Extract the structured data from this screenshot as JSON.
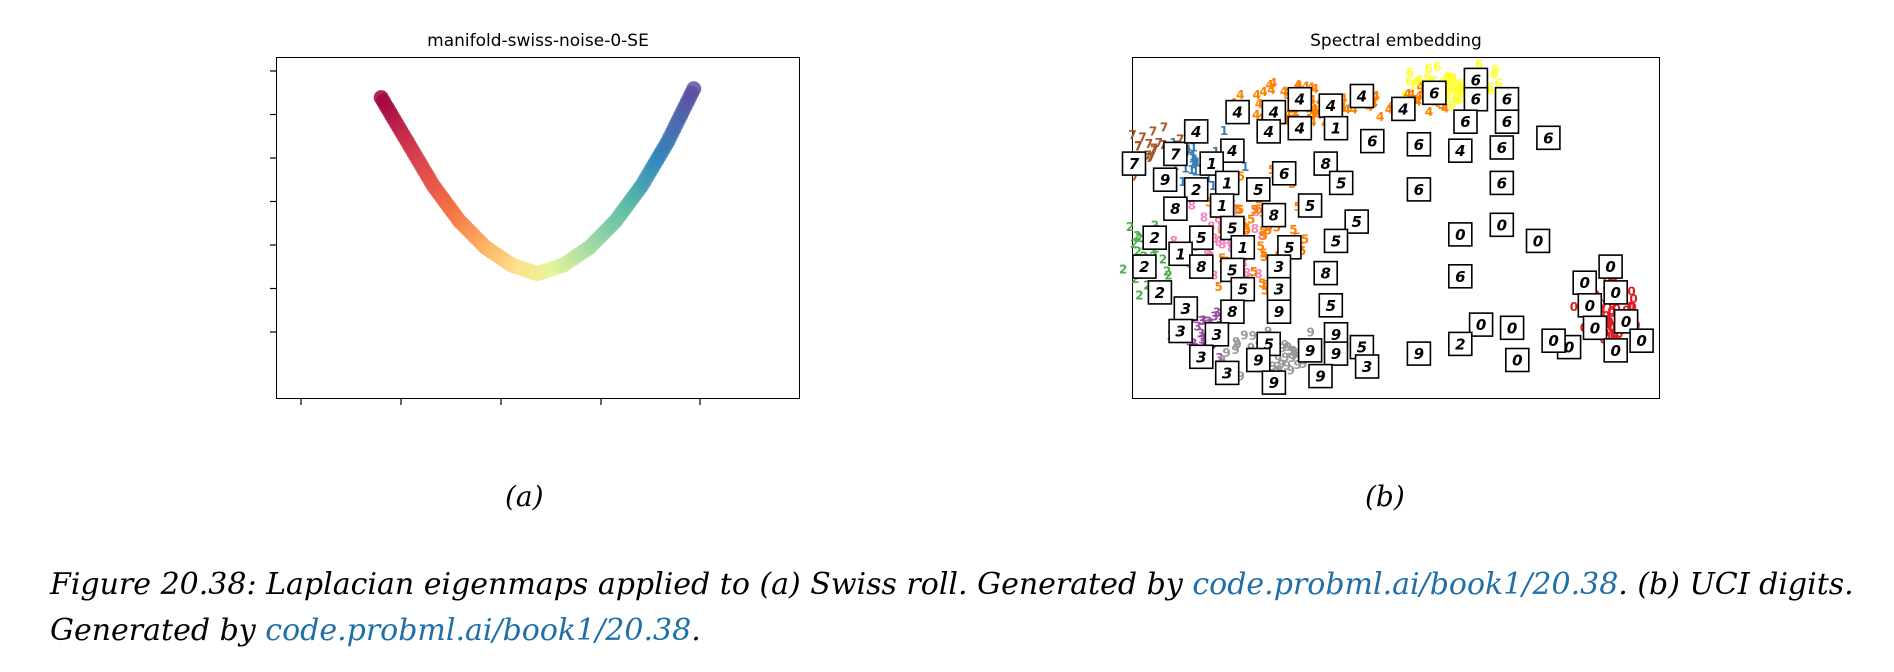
{
  "panel_a": {
    "title": "manifold-swiss-noise-0-SE",
    "sublabel": "(a)"
  },
  "panel_b": {
    "title": "Spectral embedding",
    "sublabel": "(b)"
  },
  "caption": {
    "part1": "Figure 20.38: Laplacian eigenmaps applied to (a) Swiss roll. Generated by ",
    "link1": "code.probml.ai/book1/20.38",
    "part2": ". (b) UCI digits. Generated by ",
    "link2": "code.probml.ai/book1/20.38",
    "part3": "."
  },
  "chart_data": [
    {
      "type": "scatter",
      "title": "manifold-swiss-noise-0-SE",
      "xlabel": "",
      "ylabel": "",
      "grid": false,
      "colormap": [
        "#9e0142",
        "#d53e4f",
        "#f46d43",
        "#fdae61",
        "#fee08b",
        "#e6f598",
        "#abdda4",
        "#66c2a5",
        "#3288bd",
        "#5e4fa2"
      ],
      "series": [
        {
          "x": [
            -0.012,
            -0.01,
            -0.008,
            -0.006,
            -0.004,
            -0.002,
            0.0,
            0.002,
            0.004,
            0.006,
            0.008,
            0.01,
            0.012
          ],
          "y": [
            0.014,
            0.009,
            0.004,
            0.0,
            -0.003,
            -0.005,
            -0.006,
            -0.005,
            -0.003,
            0.0,
            0.004,
            0.009,
            0.015
          ]
        }
      ]
    },
    {
      "type": "scatter",
      "title": "Spectral embedding",
      "xlabel": "",
      "ylabel": "",
      "grid": false,
      "legend": "none",
      "digit_colors": {
        "0": "#e41a1c",
        "1": "#377eb8",
        "2": "#4daf4a",
        "3": "#984ea3",
        "4": "#ff7f00",
        "5": "#ff7f00",
        "6": "#ffff33",
        "7": "#a65628",
        "8": "#f781bf",
        "9": "#999999"
      },
      "thumbnails": [
        {
          "label": "7",
          "x": 0.0,
          "y": 0.7
        },
        {
          "label": "7",
          "x": 0.08,
          "y": 0.73
        },
        {
          "label": "4",
          "x": 0.12,
          "y": 0.8
        },
        {
          "label": "4",
          "x": 0.2,
          "y": 0.86
        },
        {
          "label": "4",
          "x": 0.27,
          "y": 0.86
        },
        {
          "label": "4",
          "x": 0.32,
          "y": 0.9
        },
        {
          "label": "4",
          "x": 0.38,
          "y": 0.88
        },
        {
          "label": "4",
          "x": 0.44,
          "y": 0.91
        },
        {
          "label": "4",
          "x": 0.52,
          "y": 0.87
        },
        {
          "label": "6",
          "x": 0.58,
          "y": 0.92
        },
        {
          "label": "6",
          "x": 0.66,
          "y": 0.96
        },
        {
          "label": "6",
          "x": 0.66,
          "y": 0.9
        },
        {
          "label": "6",
          "x": 0.72,
          "y": 0.9
        },
        {
          "label": "6",
          "x": 0.64,
          "y": 0.83
        },
        {
          "label": "6",
          "x": 0.72,
          "y": 0.83
        },
        {
          "label": "6",
          "x": 0.8,
          "y": 0.78
        },
        {
          "label": "4",
          "x": 0.26,
          "y": 0.8
        },
        {
          "label": "4",
          "x": 0.32,
          "y": 0.81
        },
        {
          "label": "1",
          "x": 0.39,
          "y": 0.81
        },
        {
          "label": "4",
          "x": 0.19,
          "y": 0.74
        },
        {
          "label": "1",
          "x": 0.15,
          "y": 0.7
        },
        {
          "label": "6",
          "x": 0.46,
          "y": 0.77
        },
        {
          "label": "6",
          "x": 0.55,
          "y": 0.76
        },
        {
          "label": "4",
          "x": 0.63,
          "y": 0.74
        },
        {
          "label": "6",
          "x": 0.71,
          "y": 0.75
        },
        {
          "label": "8",
          "x": 0.37,
          "y": 0.7
        },
        {
          "label": "6",
          "x": 0.29,
          "y": 0.67
        },
        {
          "label": "5",
          "x": 0.4,
          "y": 0.64
        },
        {
          "label": "6",
          "x": 0.55,
          "y": 0.62
        },
        {
          "label": "6",
          "x": 0.71,
          "y": 0.64
        },
        {
          "label": "9",
          "x": 0.06,
          "y": 0.65
        },
        {
          "label": "2",
          "x": 0.12,
          "y": 0.62
        },
        {
          "label": "1",
          "x": 0.18,
          "y": 0.64
        },
        {
          "label": "5",
          "x": 0.24,
          "y": 0.62
        },
        {
          "label": "5",
          "x": 0.34,
          "y": 0.57
        },
        {
          "label": "5",
          "x": 0.43,
          "y": 0.52
        },
        {
          "label": "8",
          "x": 0.08,
          "y": 0.56
        },
        {
          "label": "1",
          "x": 0.17,
          "y": 0.57
        },
        {
          "label": "8",
          "x": 0.27,
          "y": 0.54
        },
        {
          "label": "5",
          "x": 0.19,
          "y": 0.5
        },
        {
          "label": "5",
          "x": 0.39,
          "y": 0.46
        },
        {
          "label": "0",
          "x": 0.63,
          "y": 0.48
        },
        {
          "label": "0",
          "x": 0.71,
          "y": 0.51
        },
        {
          "label": "0",
          "x": 0.78,
          "y": 0.46
        },
        {
          "label": "2",
          "x": 0.04,
          "y": 0.47
        },
        {
          "label": "5",
          "x": 0.13,
          "y": 0.47
        },
        {
          "label": "1",
          "x": 0.21,
          "y": 0.44
        },
        {
          "label": "5",
          "x": 0.3,
          "y": 0.44
        },
        {
          "label": "1",
          "x": 0.09,
          "y": 0.42
        },
        {
          "label": "2",
          "x": 0.02,
          "y": 0.38
        },
        {
          "label": "8",
          "x": 0.13,
          "y": 0.38
        },
        {
          "label": "5",
          "x": 0.19,
          "y": 0.37
        },
        {
          "label": "3",
          "x": 0.28,
          "y": 0.38
        },
        {
          "label": "8",
          "x": 0.37,
          "y": 0.36
        },
        {
          "label": "6",
          "x": 0.63,
          "y": 0.35
        },
        {
          "label": "0",
          "x": 0.92,
          "y": 0.38
        },
        {
          "label": "0",
          "x": 0.87,
          "y": 0.33
        },
        {
          "label": "2",
          "x": 0.05,
          "y": 0.3
        },
        {
          "label": "5",
          "x": 0.21,
          "y": 0.31
        },
        {
          "label": "3",
          "x": 0.28,
          "y": 0.31
        },
        {
          "label": "0",
          "x": 0.93,
          "y": 0.3
        },
        {
          "label": "0",
          "x": 0.88,
          "y": 0.26
        },
        {
          "label": "3",
          "x": 0.1,
          "y": 0.25
        },
        {
          "label": "8",
          "x": 0.19,
          "y": 0.24
        },
        {
          "label": "9",
          "x": 0.28,
          "y": 0.24
        },
        {
          "label": "5",
          "x": 0.38,
          "y": 0.26
        },
        {
          "label": "0",
          "x": 0.89,
          "y": 0.19
        },
        {
          "label": "0",
          "x": 0.95,
          "y": 0.21
        },
        {
          "label": "3",
          "x": 0.09,
          "y": 0.18
        },
        {
          "label": "3",
          "x": 0.16,
          "y": 0.17
        },
        {
          "label": "5",
          "x": 0.26,
          "y": 0.14
        },
        {
          "label": "9",
          "x": 0.39,
          "y": 0.17
        },
        {
          "label": "0",
          "x": 0.67,
          "y": 0.2
        },
        {
          "label": "0",
          "x": 0.73,
          "y": 0.19
        },
        {
          "label": "3",
          "x": 0.13,
          "y": 0.1
        },
        {
          "label": "9",
          "x": 0.24,
          "y": 0.09
        },
        {
          "label": "9",
          "x": 0.34,
          "y": 0.12
        },
        {
          "label": "9",
          "x": 0.39,
          "y": 0.11
        },
        {
          "label": "5",
          "x": 0.44,
          "y": 0.13
        },
        {
          "label": "9",
          "x": 0.55,
          "y": 0.11
        },
        {
          "label": "2",
          "x": 0.63,
          "y": 0.14
        },
        {
          "label": "0",
          "x": 0.74,
          "y": 0.09
        },
        {
          "label": "0",
          "x": 0.84,
          "y": 0.13
        },
        {
          "label": "0",
          "x": 0.93,
          "y": 0.12
        },
        {
          "label": "0",
          "x": 0.98,
          "y": 0.15
        },
        {
          "label": "3",
          "x": 0.18,
          "y": 0.05
        },
        {
          "label": "9",
          "x": 0.27,
          "y": 0.02
        },
        {
          "label": "9",
          "x": 0.36,
          "y": 0.04
        },
        {
          "label": "3",
          "x": 0.45,
          "y": 0.07
        },
        {
          "label": "0",
          "x": 0.81,
          "y": 0.15
        }
      ]
    }
  ]
}
